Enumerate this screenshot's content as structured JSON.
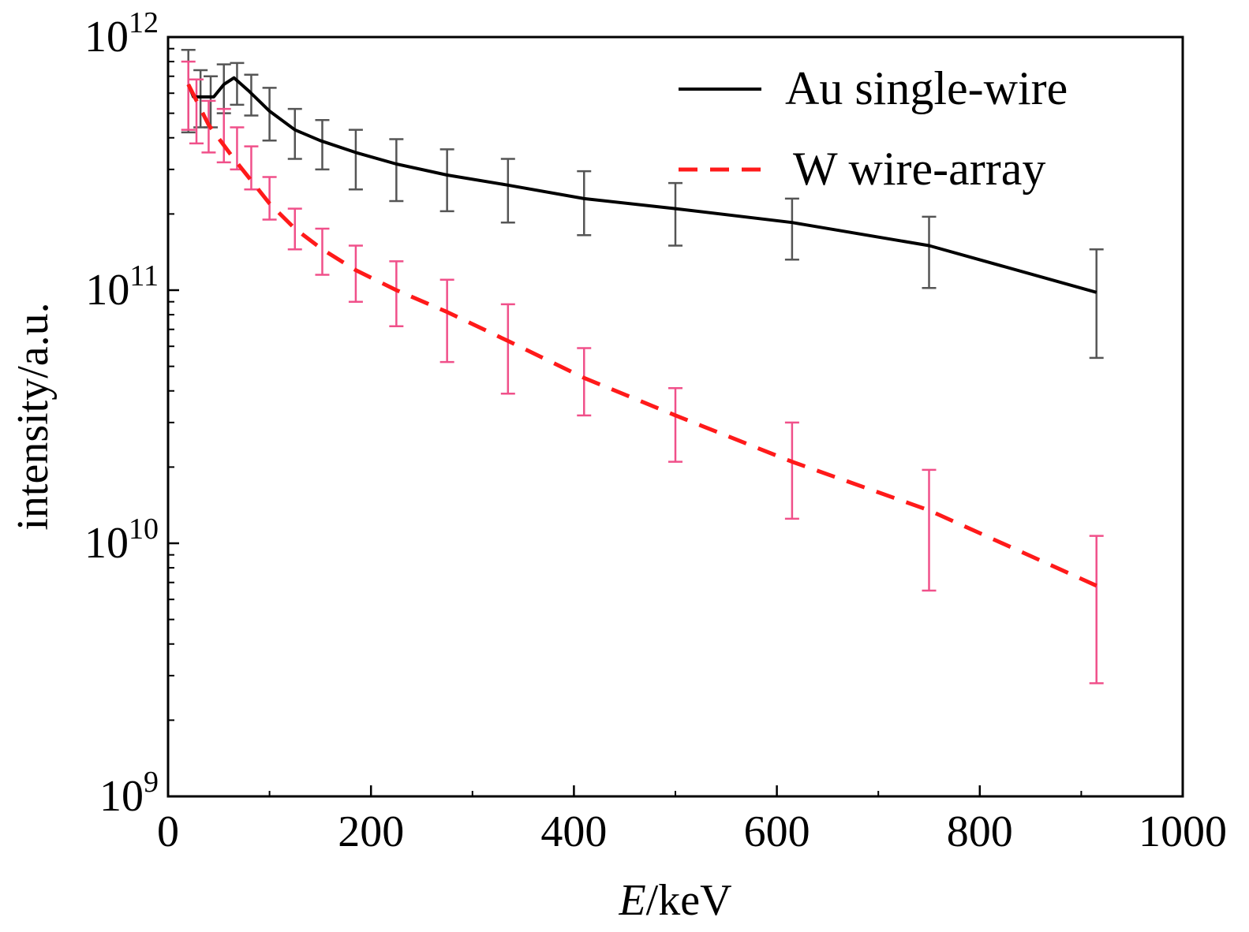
{
  "chart_data": {
    "type": "line",
    "xlabel_italic": "E",
    "xlabel_rest": "/keV",
    "ylabel": "intensity/a.u.",
    "xlim": [
      0,
      1000
    ],
    "ylim": [
      1000000000.0,
      1000000000000.0
    ],
    "yscale": "log",
    "grid": false,
    "legend_position": "top-right",
    "x_ticks": [
      {
        "value": 0,
        "label": "0"
      },
      {
        "value": 200,
        "label": "200"
      },
      {
        "value": 400,
        "label": "400"
      },
      {
        "value": 600,
        "label": "600"
      },
      {
        "value": 800,
        "label": "800"
      },
      {
        "value": 1000,
        "label": "1000"
      }
    ],
    "y_ticks": [
      {
        "value": 1000000000.0,
        "base": "10",
        "exp": "9"
      },
      {
        "value": 10000000000.0,
        "base": "10",
        "exp": "10"
      },
      {
        "value": 100000000000.0,
        "base": "10",
        "exp": "11"
      },
      {
        "value": 1000000000000.0,
        "base": "10",
        "exp": "12"
      }
    ],
    "series": [
      {
        "name": "Au single-wire",
        "color": "#000000",
        "dash": "solid",
        "errorbar_color": "#555555",
        "x": [
          20,
          25,
          45,
          55,
          65,
          80,
          100,
          125,
          150,
          185,
          225,
          275,
          335,
          410,
          500,
          615,
          750,
          915
        ],
        "y": [
          650000000000.0,
          580000000000.0,
          580000000000.0,
          650000000000.0,
          690000000000.0,
          610000000000.0,
          510000000000.0,
          430000000000.0,
          390000000000.0,
          350000000000.0,
          315000000000.0,
          285000000000.0,
          260000000000.0,
          230000000000.0,
          210000000000.0,
          185000000000.0,
          150000000000.0,
          98000000000.0
        ],
        "errorbars": [
          {
            "x": 20,
            "low": 420000000000.0,
            "high": 890000000000.0
          },
          {
            "x": 32,
            "low": 440000000000.0,
            "high": 740000000000.0
          },
          {
            "x": 42,
            "low": 440000000000.0,
            "high": 700000000000.0
          },
          {
            "x": 55,
            "low": 500000000000.0,
            "high": 780000000000.0
          },
          {
            "x": 68,
            "low": 540000000000.0,
            "high": 790000000000.0
          },
          {
            "x": 82,
            "low": 490000000000.0,
            "high": 710000000000.0
          },
          {
            "x": 100,
            "low": 390000000000.0,
            "high": 630000000000.0
          },
          {
            "x": 125,
            "low": 330000000000.0,
            "high": 520000000000.0
          },
          {
            "x": 152,
            "low": 300000000000.0,
            "high": 470000000000.0
          },
          {
            "x": 185,
            "low": 250000000000.0,
            "high": 430000000000.0
          },
          {
            "x": 225,
            "low": 225000000000.0,
            "high": 395000000000.0
          },
          {
            "x": 275,
            "low": 205000000000.0,
            "high": 360000000000.0
          },
          {
            "x": 335,
            "low": 185000000000.0,
            "high": 330000000000.0
          },
          {
            "x": 410,
            "low": 165000000000.0,
            "high": 295000000000.0
          },
          {
            "x": 500,
            "low": 150000000000.0,
            "high": 265000000000.0
          },
          {
            "x": 615,
            "low": 132000000000.0,
            "high": 230000000000.0
          },
          {
            "x": 750,
            "low": 102000000000.0,
            "high": 195000000000.0
          },
          {
            "x": 915,
            "low": 54000000000.0,
            "high": 145000000000.0
          }
        ]
      },
      {
        "name": "W wire-array",
        "color": "#ff1a1a",
        "dash": "dashed",
        "errorbar_color": "#f0508a",
        "x": [
          20,
          40,
          65,
          100,
          125,
          152,
          185,
          225,
          275,
          335,
          410,
          500,
          615,
          750,
          915
        ],
        "y": [
          650000000000.0,
          450000000000.0,
          330000000000.0,
          220000000000.0,
          175000000000.0,
          145000000000.0,
          120000000000.0,
          100000000000.0,
          82000000000.0,
          63000000000.0,
          45000000000.0,
          32000000000.0,
          21000000000.0,
          13500000000.0,
          6800000000.0
        ],
        "errorbars": [
          {
            "x": 20,
            "low": 430000000000.0,
            "high": 800000000000.0
          },
          {
            "x": 28,
            "low": 380000000000.0,
            "high": 680000000000.0
          },
          {
            "x": 40,
            "low": 350000000000.0,
            "high": 560000000000.0
          },
          {
            "x": 55,
            "low": 320000000000.0,
            "high": 520000000000.0
          },
          {
            "x": 68,
            "low": 300000000000.0,
            "high": 440000000000.0
          },
          {
            "x": 82,
            "low": 250000000000.0,
            "high": 370000000000.0
          },
          {
            "x": 100,
            "low": 190000000000.0,
            "high": 280000000000.0
          },
          {
            "x": 125,
            "low": 145000000000.0,
            "high": 210000000000.0
          },
          {
            "x": 152,
            "low": 115000000000.0,
            "high": 175000000000.0
          },
          {
            "x": 185,
            "low": 90000000000.0,
            "high": 150000000000.0
          },
          {
            "x": 225,
            "low": 72000000000.0,
            "high": 130000000000.0
          },
          {
            "x": 275,
            "low": 52000000000.0,
            "high": 110000000000.0
          },
          {
            "x": 335,
            "low": 39000000000.0,
            "high": 88000000000.0
          },
          {
            "x": 410,
            "low": 32000000000.0,
            "high": 59000000000.0
          },
          {
            "x": 500,
            "low": 21000000000.0,
            "high": 41000000000.0
          },
          {
            "x": 615,
            "low": 12500000000.0,
            "high": 30000000000.0
          },
          {
            "x": 750,
            "low": 6500000000.0,
            "high": 19500000000.0
          },
          {
            "x": 915,
            "low": 2800000000.0,
            "high": 10700000000.0
          }
        ]
      }
    ]
  }
}
